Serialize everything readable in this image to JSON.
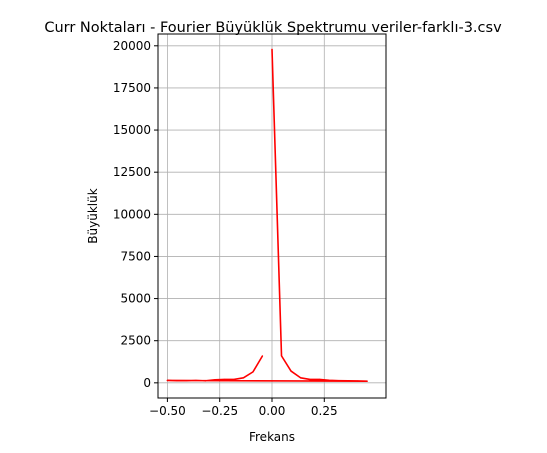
{
  "chart_data": {
    "type": "line",
    "title": "Curr Noktaları - Fourier Büyüklük Spektrumu veriler-farklı-3.csv",
    "xlabel": "Frekans",
    "ylabel": "Büyüklük",
    "xlim": [
      -0.545,
      0.545
    ],
    "ylim": [
      -900,
      20700
    ],
    "xticks": [
      {
        "value": -0.5,
        "label": "−0.50"
      },
      {
        "value": -0.25,
        "label": "−0.25"
      },
      {
        "value": 0.0,
        "label": "0.00"
      },
      {
        "value": 0.25,
        "label": "0.25"
      }
    ],
    "yticks": [
      {
        "value": 0,
        "label": "0"
      },
      {
        "value": 2500,
        "label": "2500"
      },
      {
        "value": 5000,
        "label": "5000"
      },
      {
        "value": 7500,
        "label": "7500"
      },
      {
        "value": 10000,
        "label": "10000"
      },
      {
        "value": 12500,
        "label": "12500"
      },
      {
        "value": 15000,
        "label": "15000"
      },
      {
        "value": 17500,
        "label": "17500"
      },
      {
        "value": 20000,
        "label": "20000"
      }
    ],
    "grid": true,
    "series": [
      {
        "color": "#ff0000",
        "x": [
          0.0,
          0.0455,
          0.0909,
          0.1364,
          0.1818,
          0.2273,
          0.2727,
          0.3182,
          0.3636,
          0.4091,
          0.4545,
          -0.5,
          -0.4545,
          -0.4091,
          -0.3636,
          -0.3182,
          -0.2727,
          -0.2273,
          -0.1818,
          -0.1364,
          -0.0909,
          -0.0455
        ],
        "y": [
          19800,
          1600,
          700,
          300,
          200,
          200,
          150,
          130,
          120,
          110,
          100,
          140,
          130,
          130,
          140,
          120,
          180,
          200,
          200,
          300,
          650,
          1600
        ]
      }
    ]
  }
}
